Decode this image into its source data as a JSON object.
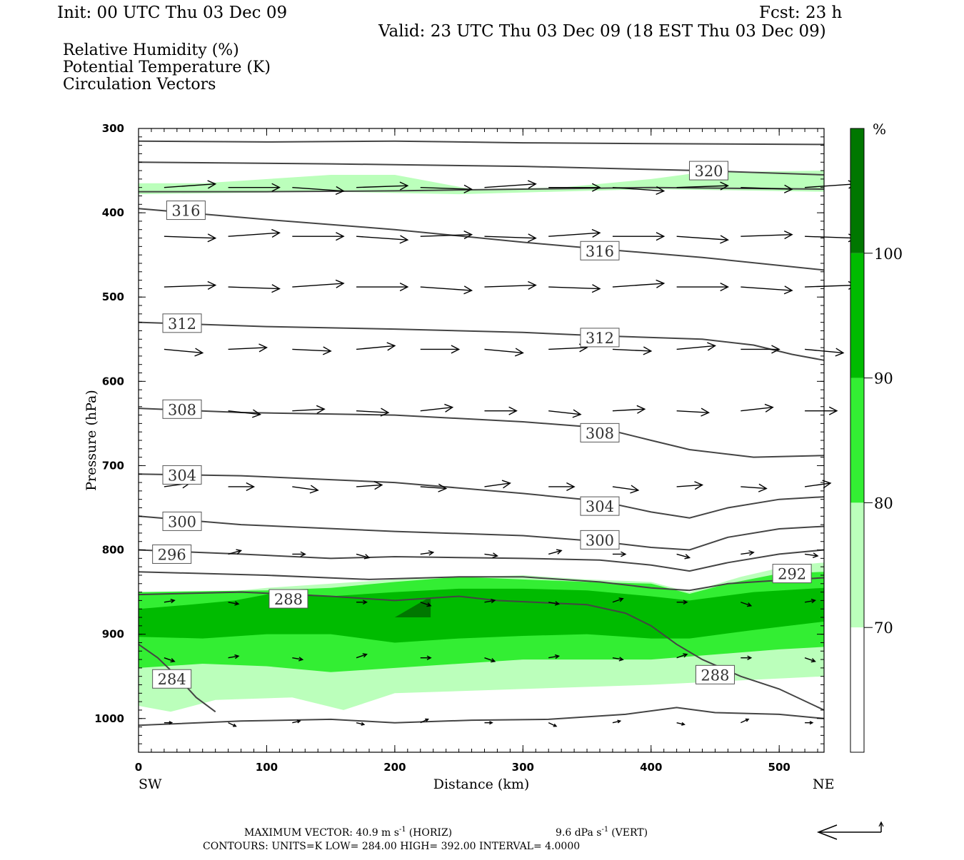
{
  "header": {
    "init": "Init: 00 UTC Thu 03 Dec 09",
    "fcst": "Fcst:   23 h",
    "valid": "Valid: 23 UTC Thu 03 Dec 09 (18 EST Thu 03 Dec 09)"
  },
  "legend": [
    {
      "label": "Relative Humidity (%)",
      "color": "#000000"
    },
    {
      "label": "Potential Temperature (K)",
      "color": "#777777"
    },
    {
      "label": "Circulation Vectors",
      "color": "#000000"
    }
  ],
  "footer": {
    "max_vector": "MAXIMUM VECTOR:  40.9 m s",
    "horiz_unit": "-1",
    "horiz": "(HORIZ)",
    "vert": "9.6 dPa s",
    "vert_unit": "-1",
    "vert_tag": "(VERT)",
    "contours": "CONTOURS:  UNITS=K  LOW=   284.00        HIGH=   392.00        INTERVAL=     4.0000"
  },
  "chart_data": {
    "type": "cross-section",
    "xlabel": "Distance (km)",
    "ylabel": "Pressure (hPa)",
    "x_end_labels": {
      "left": "SW",
      "right": "NE"
    },
    "xlim": [
      0,
      535
    ],
    "ylim": [
      300,
      1040
    ],
    "x_ticks": [
      0,
      100,
      200,
      300,
      400,
      500
    ],
    "y_ticks": [
      300,
      400,
      500,
      600,
      700,
      800,
      900,
      1000
    ],
    "colorbar": {
      "unit": "%",
      "levels": [
        70,
        80,
        90,
        100
      ],
      "colors": [
        "#ffffff",
        "#bbffbb",
        "#33ee33",
        "#00bb00",
        "#007700"
      ]
    },
    "rh_bands": [
      {
        "level": 70,
        "color": "#bbffbb",
        "top": [
          [
            0,
            365
          ],
          [
            50,
            365
          ],
          [
            150,
            355
          ],
          [
            200,
            355
          ],
          [
            260,
            372
          ],
          [
            330,
            370
          ],
          [
            400,
            360
          ],
          [
            440,
            352
          ],
          [
            535,
            350
          ]
        ],
        "bottom": [
          [
            0,
            378
          ],
          [
            150,
            375
          ],
          [
            250,
            378
          ],
          [
            400,
            372
          ],
          [
            535,
            375
          ]
        ]
      },
      {
        "level": 70,
        "color": "#bbffbb",
        "top": [
          [
            0,
            860
          ],
          [
            100,
            845
          ],
          [
            200,
            835
          ],
          [
            300,
            830
          ],
          [
            350,
            835
          ],
          [
            400,
            838
          ],
          [
            430,
            850
          ],
          [
            470,
            832
          ],
          [
            510,
            818
          ],
          [
            535,
            815
          ]
        ],
        "bottom": [
          [
            0,
            985
          ],
          [
            25,
            992
          ],
          [
            60,
            978
          ],
          [
            120,
            975
          ],
          [
            160,
            990
          ],
          [
            200,
            970
          ],
          [
            300,
            965
          ],
          [
            400,
            960
          ],
          [
            535,
            950
          ]
        ]
      },
      {
        "level": 80,
        "color": "#33ee33",
        "top": [
          [
            0,
            850
          ],
          [
            100,
            848
          ],
          [
            150,
            845
          ],
          [
            200,
            838
          ],
          [
            250,
            832
          ],
          [
            300,
            835
          ],
          [
            350,
            838
          ],
          [
            400,
            840
          ],
          [
            430,
            852
          ],
          [
            460,
            840
          ],
          [
            500,
            828
          ],
          [
            535,
            826
          ]
        ],
        "bottom": [
          [
            0,
            940
          ],
          [
            50,
            935
          ],
          [
            100,
            938
          ],
          [
            150,
            945
          ],
          [
            200,
            940
          ],
          [
            250,
            935
          ],
          [
            300,
            930
          ],
          [
            400,
            930
          ],
          [
            500,
            918
          ],
          [
            535,
            915
          ]
        ]
      },
      {
        "level": 90,
        "color": "#00bb00",
        "top": [
          [
            0,
            870
          ],
          [
            40,
            865
          ],
          [
            75,
            860
          ],
          [
            110,
            850
          ],
          [
            150,
            855
          ],
          [
            200,
            850
          ],
          [
            250,
            846
          ],
          [
            300,
            846
          ],
          [
            350,
            848
          ],
          [
            400,
            855
          ],
          [
            430,
            860
          ],
          [
            480,
            850
          ],
          [
            535,
            845
          ]
        ],
        "bottom": [
          [
            0,
            903
          ],
          [
            50,
            905
          ],
          [
            100,
            900
          ],
          [
            150,
            900
          ],
          [
            200,
            910
          ],
          [
            250,
            905
          ],
          [
            300,
            902
          ],
          [
            350,
            900
          ],
          [
            400,
            905
          ],
          [
            430,
            905
          ],
          [
            480,
            895
          ],
          [
            535,
            885
          ]
        ]
      },
      {
        "level": 100,
        "color": "#007700",
        "top": [
          [
            200,
            880
          ],
          [
            225,
            858
          ],
          [
            228,
            858
          ],
          [
            228,
            880
          ]
        ],
        "bottom": []
      }
    ],
    "theta_contours": [
      {
        "label": "",
        "points": [
          [
            0,
            315
          ],
          [
            100,
            316
          ],
          [
            200,
            315
          ],
          [
            300,
            317
          ],
          [
            400,
            318
          ],
          [
            535,
            319
          ]
        ],
        "label_at": null
      },
      {
        "label": "320",
        "points": [
          [
            0,
            340
          ],
          [
            150,
            342
          ],
          [
            300,
            345
          ],
          [
            440,
            350
          ],
          [
            535,
            355
          ]
        ],
        "label_at": [
          445,
          350
        ]
      },
      {
        "label": "",
        "points": [
          [
            0,
            375
          ],
          [
            100,
            375
          ],
          [
            200,
            374
          ],
          [
            300,
            372
          ],
          [
            400,
            370
          ],
          [
            535,
            372
          ]
        ],
        "label_at": null
      },
      {
        "label": "316",
        "points": [
          [
            0,
            395
          ],
          [
            100,
            408
          ],
          [
            200,
            420
          ],
          [
            300,
            435
          ],
          [
            360,
            443
          ],
          [
            440,
            453
          ],
          [
            535,
            468
          ]
        ],
        "label_at": [
          37,
          397
        ]
      },
      {
        "label": "316",
        "points": [],
        "label_at": [
          360,
          445
        ]
      },
      {
        "label": "312",
        "points": [
          [
            0,
            530
          ],
          [
            100,
            535
          ],
          [
            200,
            538
          ],
          [
            300,
            542
          ],
          [
            360,
            546
          ],
          [
            440,
            550
          ],
          [
            480,
            557
          ],
          [
            510,
            568
          ],
          [
            535,
            575
          ]
        ],
        "label_at": [
          34,
          531
        ]
      },
      {
        "label": "312",
        "points": [],
        "label_at": [
          360,
          548
        ]
      },
      {
        "label": "308",
        "points": [
          [
            0,
            632
          ],
          [
            80,
            637
          ],
          [
            200,
            640
          ],
          [
            300,
            648
          ],
          [
            360,
            655
          ],
          [
            400,
            670
          ],
          [
            430,
            681
          ],
          [
            480,
            690
          ],
          [
            535,
            688
          ]
        ],
        "label_at": [
          34,
          633
        ]
      },
      {
        "label": "308",
        "points": [],
        "label_at": [
          360,
          661
        ]
      },
      {
        "label": "304",
        "points": [
          [
            0,
            710
          ],
          [
            80,
            712
          ],
          [
            200,
            720
          ],
          [
            300,
            733
          ],
          [
            360,
            742
          ],
          [
            400,
            755
          ],
          [
            430,
            762
          ],
          [
            460,
            750
          ],
          [
            500,
            740
          ],
          [
            535,
            737
          ]
        ],
        "label_at": [
          34,
          711
        ]
      },
      {
        "label": "304",
        "points": [],
        "label_at": [
          360,
          748
        ]
      },
      {
        "label": "300",
        "points": [
          [
            0,
            760
          ],
          [
            80,
            770
          ],
          [
            200,
            778
          ],
          [
            300,
            783
          ],
          [
            360,
            790
          ],
          [
            400,
            797
          ],
          [
            430,
            800
          ],
          [
            460,
            785
          ],
          [
            500,
            775
          ],
          [
            535,
            772
          ]
        ],
        "label_at": [
          34,
          766
        ]
      },
      {
        "label": "300",
        "points": [],
        "label_at": [
          360,
          788
        ]
      },
      {
        "label": "296",
        "points": [
          [
            0,
            800
          ],
          [
            80,
            805
          ],
          [
            150,
            810
          ],
          [
            200,
            808
          ],
          [
            300,
            810
          ],
          [
            360,
            812
          ],
          [
            400,
            818
          ],
          [
            430,
            825
          ],
          [
            460,
            815
          ],
          [
            500,
            805
          ],
          [
            535,
            800
          ]
        ],
        "label_at": [
          26,
          805
        ]
      },
      {
        "label": "292",
        "points": [
          [
            0,
            826
          ],
          [
            100,
            830
          ],
          [
            180,
            835
          ],
          [
            250,
            832
          ],
          [
            300,
            832
          ],
          [
            360,
            838
          ],
          [
            400,
            845
          ],
          [
            430,
            848
          ],
          [
            460,
            840
          ],
          [
            500,
            836
          ],
          [
            535,
            833
          ]
        ],
        "label_at": [
          510,
          828
        ]
      },
      {
        "label": "288",
        "points": [
          [
            0,
            853
          ],
          [
            80,
            850
          ],
          [
            150,
            855
          ],
          [
            200,
            860
          ],
          [
            250,
            855
          ],
          [
            280,
            860
          ],
          [
            350,
            865
          ],
          [
            380,
            875
          ],
          [
            400,
            890
          ],
          [
            420,
            912
          ],
          [
            440,
            930
          ],
          [
            470,
            950
          ],
          [
            500,
            965
          ],
          [
            535,
            990
          ]
        ],
        "label_at": [
          117,
          858
        ]
      },
      {
        "label": "288",
        "points": [],
        "label_at": [
          450,
          948
        ]
      },
      {
        "label": "284",
        "points": [
          [
            0,
            912
          ],
          [
            15,
            928
          ],
          [
            30,
            950
          ],
          [
            45,
            975
          ],
          [
            60,
            992
          ]
        ],
        "label_at": [
          26,
          953
        ]
      },
      {
        "label": "",
        "points": [
          [
            0,
            1008
          ],
          [
            80,
            1003
          ],
          [
            150,
            1001
          ],
          [
            200,
            1005
          ],
          [
            260,
            1002
          ],
          [
            320,
            1001
          ],
          [
            380,
            995
          ],
          [
            420,
            987
          ],
          [
            450,
            993
          ],
          [
            500,
            995
          ],
          [
            535,
            1000
          ]
        ],
        "label_at": null
      }
    ],
    "vectors": {
      "rows": [
        370,
        428,
        488,
        562,
        635,
        725,
        805,
        862,
        928,
        1005
      ],
      "columns": [
        20,
        70,
        120,
        170,
        220,
        270,
        320,
        370,
        420,
        470,
        520
      ],
      "max_horizontal": 40.9,
      "max_vertical": 9.6,
      "row_length_km": [
        40,
        40,
        40,
        30,
        25,
        20,
        10,
        8,
        8,
        6
      ]
    }
  }
}
